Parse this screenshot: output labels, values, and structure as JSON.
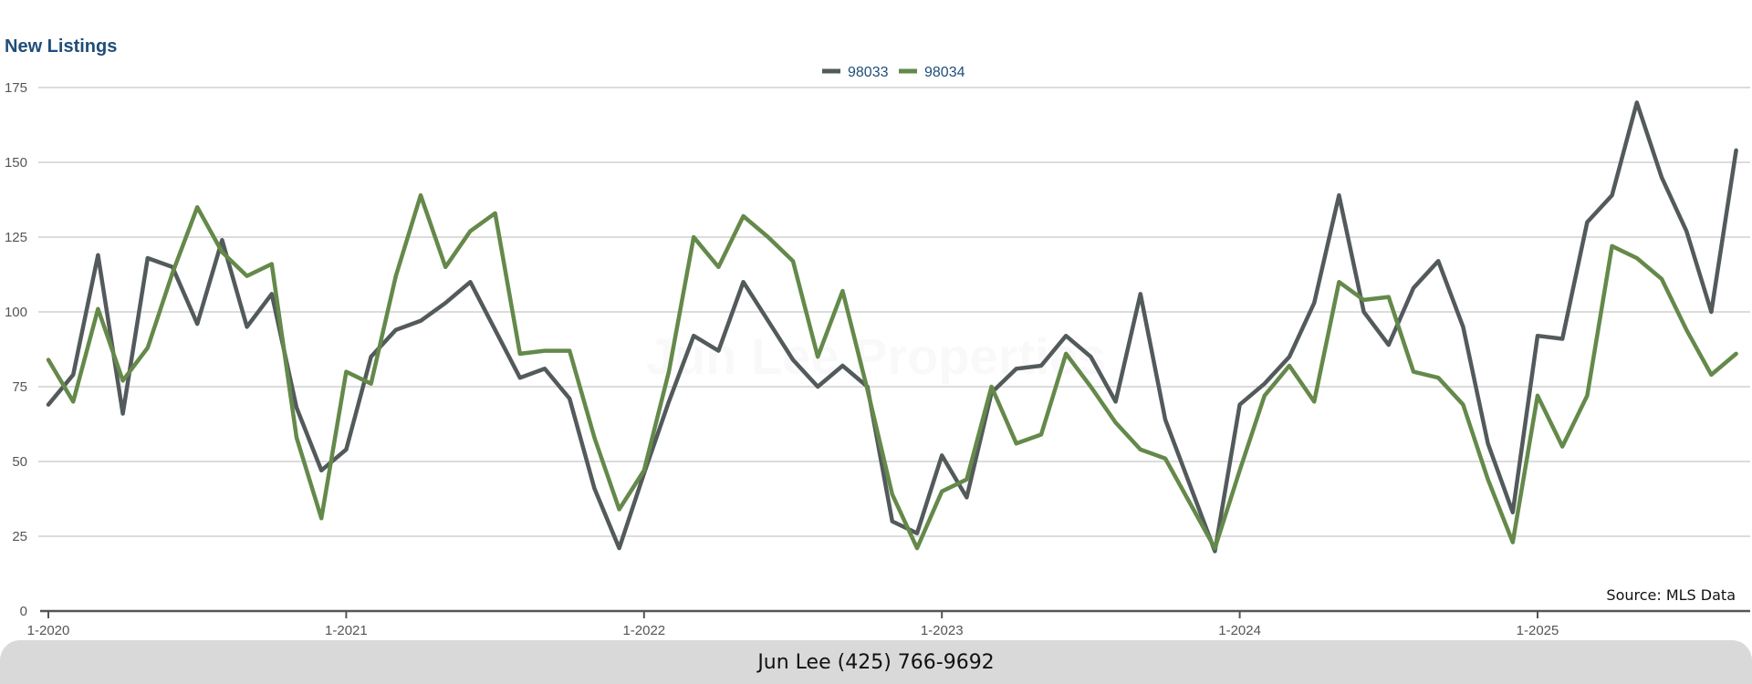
{
  "chart_data": {
    "type": "line",
    "title": "New Listings",
    "xlabel": "",
    "ylabel": "",
    "ylim": [
      0,
      175
    ],
    "yticks": [
      0,
      25,
      50,
      75,
      100,
      125,
      150,
      175
    ],
    "x_tick_labels": [
      "1-2020",
      "1-2021",
      "1-2022",
      "1-2023",
      "1-2024",
      "1-2025"
    ],
    "x_start": "2020-01",
    "grid": true,
    "legend_position": "top-center",
    "series": [
      {
        "name": "98033",
        "color": "#535a5c",
        "values": [
          69,
          79,
          119,
          66,
          118,
          115,
          96,
          124,
          95,
          106,
          68,
          47,
          54,
          85,
          94,
          97,
          103,
          110,
          94,
          78,
          81,
          71,
          41,
          21,
          46,
          70,
          92,
          87,
          110,
          97,
          84,
          75,
          82,
          75,
          30,
          26,
          52,
          38,
          73,
          81,
          82,
          92,
          85,
          70,
          106,
          64,
          42,
          20,
          69,
          76,
          85,
          103,
          139,
          100,
          89,
          108,
          117,
          95,
          56,
          33,
          92,
          91,
          130,
          139,
          170,
          145,
          127,
          100,
          154
        ]
      },
      {
        "name": "98034",
        "color": "#64894a",
        "values": [
          84,
          70,
          101,
          77,
          88,
          113,
          135,
          120,
          112,
          116,
          58,
          31,
          80,
          76,
          112,
          139,
          115,
          127,
          133,
          86,
          87,
          87,
          58,
          34,
          47,
          80,
          125,
          115,
          132,
          125,
          117,
          85,
          107,
          74,
          39,
          21,
          40,
          44,
          75,
          56,
          59,
          86,
          75,
          63,
          54,
          51,
          36,
          21,
          47,
          72,
          82,
          70,
          110,
          104,
          105,
          80,
          78,
          69,
          44,
          23,
          72,
          55,
          72,
          122,
          118,
          111,
          94,
          79,
          86
        ]
      }
    ],
    "source_note": "Source: MLS Data"
  },
  "watermark": "Jun Lee Properties",
  "footer": {
    "contact": "Jun Lee (425) 766-9692"
  }
}
